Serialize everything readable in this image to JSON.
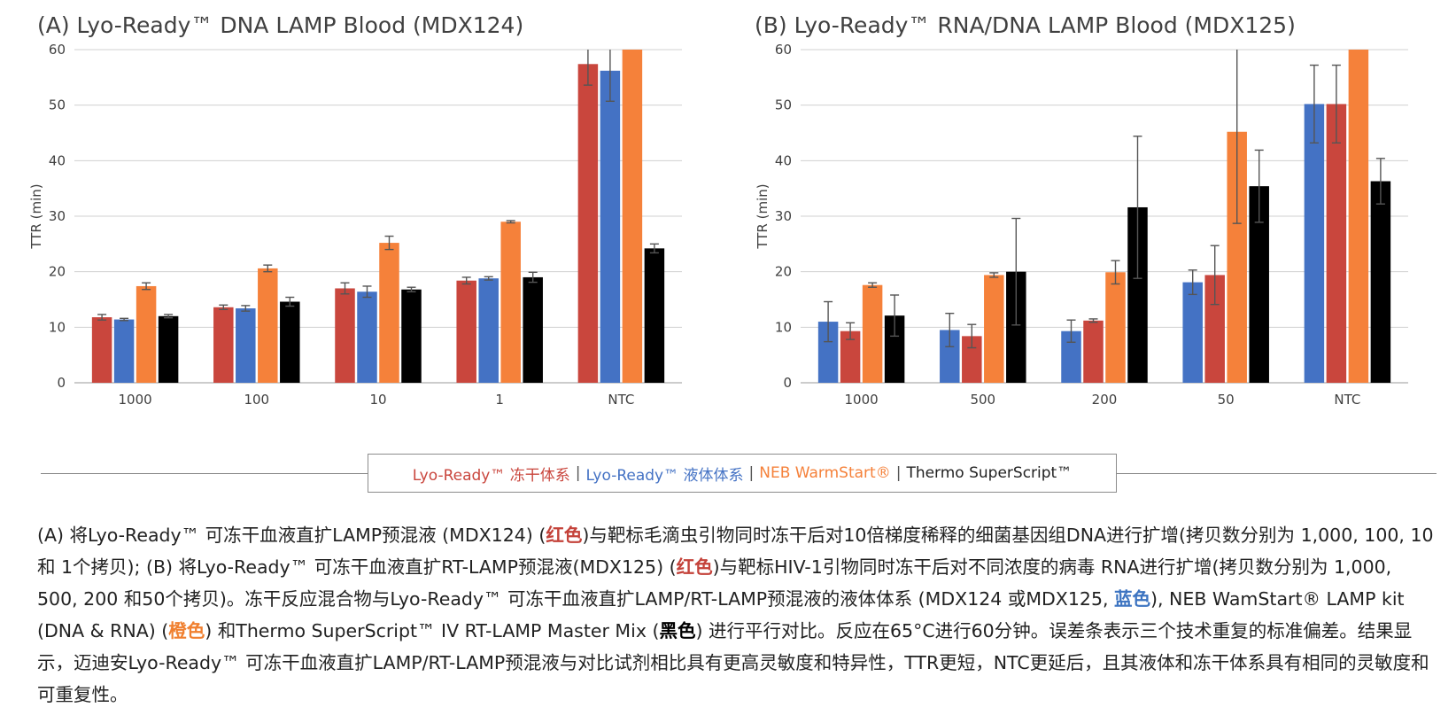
{
  "chart_data": [
    {
      "type": "bar",
      "title": "(A) Lyo-Ready™ DNA LAMP Blood (MDX124)",
      "ylabel": "TTR (min)",
      "xlabel": "",
      "ylim": [
        0,
        60
      ],
      "yticks": [
        0,
        10,
        20,
        30,
        40,
        50,
        60
      ],
      "categories": [
        "1000",
        "100",
        "10",
        "1",
        "NTC"
      ],
      "series": [
        {
          "name": "Lyo-Ready™ 冻干体系",
          "color": "#c9463d",
          "values": [
            11.8,
            13.6,
            17.0,
            18.4,
            57.4
          ],
          "errors": [
            0.5,
            0.4,
            1.0,
            0.6,
            3.8
          ]
        },
        {
          "name": "Lyo-Ready™ 液体体系",
          "color": "#4472c4",
          "values": [
            11.4,
            13.4,
            16.4,
            18.8,
            56.2
          ],
          "errors": [
            0.2,
            0.5,
            1.0,
            0.3,
            5.5
          ]
        },
        {
          "name": "NEB WarmStart®",
          "color": "#f5813a",
          "values": [
            17.4,
            20.6,
            25.2,
            29.0,
            60.0
          ],
          "errors": [
            0.6,
            0.6,
            1.2,
            0.2,
            0.0
          ]
        },
        {
          "name": "Thermo SuperScript™",
          "color": "#000000",
          "values": [
            12.0,
            14.6,
            16.8,
            19.0,
            24.2
          ],
          "errors": [
            0.3,
            0.8,
            0.4,
            0.9,
            0.8
          ]
        }
      ]
    },
    {
      "type": "bar",
      "title": "(B) Lyo-Ready™ RNA/DNA LAMP Blood (MDX125)",
      "ylabel": "TTR (min)",
      "xlabel": "",
      "ylim": [
        0,
        60
      ],
      "yticks": [
        0,
        10,
        20,
        30,
        40,
        50,
        60
      ],
      "categories": [
        "1000",
        "500",
        "200",
        "50",
        "NTC"
      ],
      "series": [
        {
          "name": "Lyo-Ready™ 液体体系",
          "color": "#4472c4",
          "values": [
            11.0,
            9.5,
            9.3,
            18.1,
            50.2
          ],
          "errors": [
            3.6,
            3.0,
            2.0,
            2.2,
            7.0
          ]
        },
        {
          "name": "Lyo-Ready™ 冻干体系",
          "color": "#c9463d",
          "values": [
            9.3,
            8.4,
            11.2,
            19.4,
            50.2
          ],
          "errors": [
            1.5,
            2.1,
            0.3,
            5.3,
            7.0
          ]
        },
        {
          "name": "NEB WarmStart®",
          "color": "#f5813a",
          "values": [
            17.6,
            19.4,
            19.9,
            45.2,
            60.0
          ],
          "errors": [
            0.4,
            0.4,
            2.1,
            16.5,
            0.0
          ]
        },
        {
          "name": "Thermo SuperScript™",
          "color": "#000000",
          "values": [
            12.1,
            20.0,
            31.6,
            35.4,
            36.3
          ],
          "errors": [
            3.7,
            9.6,
            12.8,
            6.5,
            4.1
          ]
        }
      ]
    }
  ],
  "legend": {
    "items": [
      {
        "label": "Lyo-Ready™ 冻干体系",
        "color": "#c9463d"
      },
      {
        "label": "Lyo-Ready™ 液体体系",
        "color": "#4472c4"
      },
      {
        "label": "NEB WarmStart®",
        "color": "#f5813a"
      },
      {
        "label": "Thermo SuperScript™",
        "color": "#222222"
      }
    ],
    "separator": "|"
  },
  "caption": {
    "p1": "(A) 将Lyo-Ready™ 可冻干血液直扩LAMP预混液 (MDX124) (",
    "red1": "红色",
    "p2": ")与靶标毛滴虫引物同时冻干后对10倍梯度稀释的细菌基因组DNA进行扩增(拷贝数分别为 1,000, 100, 10和 1个拷贝); (B) 将Lyo-Ready™ 可冻干血液直扩RT-LAMP预混液(MDX125) (",
    "red2": "红色",
    "p3": ")与靶标HIV-1引物同时冻干后对不同浓度的病毒 RNA进行扩增(拷贝数分别为 1,000, 500, 200 和50个拷贝)。冻干反应混合物与Lyo-Ready™ 可冻干血液直扩LAMP/RT-LAMP预混液的液体体系 (MDX124 或MDX125, ",
    "blue": "蓝色",
    "p4": "), NEB WamStart® LAMP kit (DNA & RNA) (",
    "orange": "橙色",
    "p5": ") 和Thermo SuperScript™ IV RT-LAMP Master Mix (",
    "black": "黑色",
    "p6": ") 进行平行对比。反应在65°C进行60分钟。误差条表示三个技术重复的标准偏差。结果显示，迈迪安Lyo-Ready™ 可冻干血液直扩LAMP/RT-LAMP预混液与对比试剂相比具有更高灵敏度和特异性，TTR更短，NTC更延后，且其液体和冻干体系具有相同的灵敏度和可重复性。"
  }
}
